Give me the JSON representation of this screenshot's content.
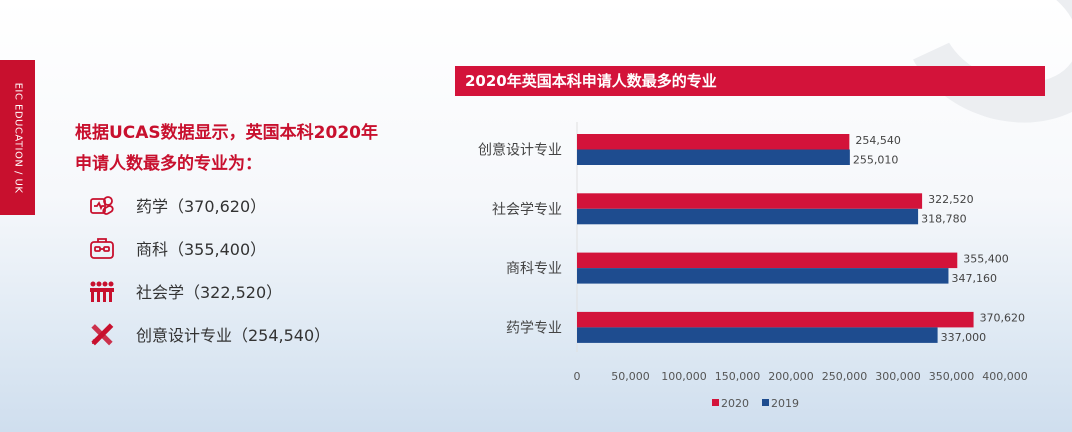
{
  "side_tab": "EIC EDUCATION / UK",
  "headline": [
    "根据UCAS数据显示，英国本科2020年",
    "申请人数最多的专业为："
  ],
  "items": [
    {
      "icon": "medicine-icon",
      "label": "药学（370,620）"
    },
    {
      "icon": "briefcase-icon",
      "label": "商科（355,400）"
    },
    {
      "icon": "people-icon",
      "label": "社会学（322,520）"
    },
    {
      "icon": "pencil-ruler-icon",
      "label": "创意设计专业（254,540）"
    }
  ],
  "chart_data": {
    "type": "bar",
    "orientation": "horizontal",
    "title": "2020年英国本科申请人数最多的专业",
    "categories": [
      "创意设计专业",
      "社会学专业",
      "商科专业",
      "药学专业"
    ],
    "series": [
      {
        "name": "2020",
        "color": "#d3133a",
        "values": [
          254540,
          322520,
          355400,
          370620
        ],
        "labels": [
          "254,540",
          "322,520",
          "355,400",
          "370,620"
        ]
      },
      {
        "name": "2019",
        "color": "#1e4c8f",
        "values": [
          255010,
          318780,
          347160,
          337000
        ],
        "labels": [
          "255,010",
          "318,780",
          "347,160",
          "337,000"
        ]
      }
    ],
    "xlim": [
      0,
      400000
    ],
    "xticks": [
      "0",
      "50,000",
      "100,000",
      "150,000",
      "200,000",
      "250,000",
      "300,000",
      "350,000",
      "400,000"
    ],
    "grid": false,
    "legend": "bottom"
  }
}
